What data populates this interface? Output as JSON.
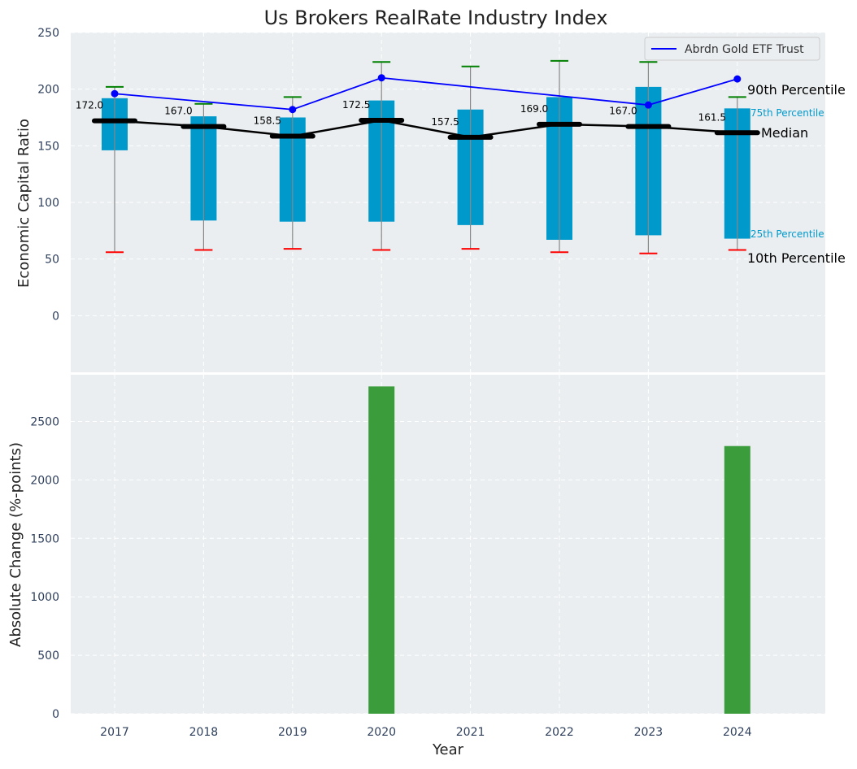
{
  "chart_data": {
    "type": "box_with_line_and_bar",
    "title": "Us Brokers RealRate Industry Index",
    "xlabel": "Year",
    "categories": [
      "2017",
      "2018",
      "2019",
      "2020",
      "2021",
      "2022",
      "2023",
      "2024"
    ],
    "top_panel": {
      "ylabel": "Economic Capital Ratio",
      "ylim": [
        -50,
        250
      ],
      "yticks": [
        "0",
        "50",
        "100",
        "150",
        "200",
        "250"
      ],
      "grid": true,
      "p10": [
        56,
        58,
        59,
        58,
        59,
        56,
        55,
        58
      ],
      "p25": [
        146,
        84,
        83,
        83,
        80,
        67,
        71,
        68
      ],
      "median": [
        172.0,
        167.0,
        158.5,
        172.5,
        157.5,
        169.0,
        167.0,
        161.5
      ],
      "median_labels": [
        "172.0",
        "167.0",
        "158.5",
        "172.5",
        "157.5",
        "169.0",
        "167.0",
        "161.5"
      ],
      "p75": [
        192,
        176,
        175,
        190,
        182,
        193,
        202,
        183
      ],
      "p90": [
        202,
        187,
        193,
        224,
        220,
        225,
        224,
        193
      ],
      "series": [
        {
          "name": "Abrdn Gold ETF Trust",
          "values": [
            196,
            null,
            182,
            210,
            null,
            null,
            186,
            209
          ]
        }
      ],
      "legend": {
        "label": "Abrdn Gold ETF Trust",
        "position": "top-right"
      },
      "annotations": {
        "p90": "90th Percentile",
        "p75": "75th Percentile",
        "median": "Median",
        "p25": "25th Percentile",
        "p10": "10th Percentile"
      }
    },
    "bottom_panel": {
      "ylabel": "Absolute Change (%-points)",
      "ylim": [
        0,
        2900
      ],
      "yticks": [
        "0",
        "500",
        "1000",
        "1500",
        "2000",
        "2500"
      ],
      "grid": true,
      "values": [
        0,
        0,
        0,
        2800,
        0,
        0,
        0,
        2290
      ]
    },
    "colors": {
      "box": "#0099cc",
      "median_line": "#000000",
      "series_line": "#0000ff",
      "whisker_top": "#008000",
      "whisker_bottom": "#ff0000",
      "bar": "#3a9c3a",
      "background": "#eaeef0",
      "annotation_blue": "#0099cc"
    }
  }
}
